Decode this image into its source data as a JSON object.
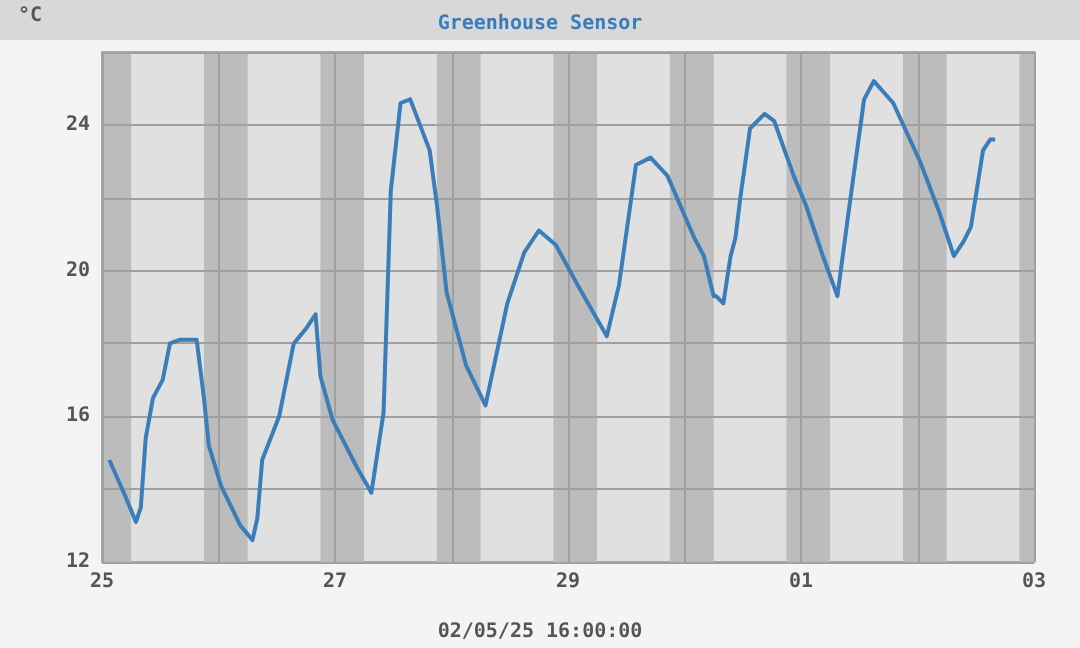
{
  "chart_data": {
    "type": "line",
    "title": "Greenhouse Sensor",
    "ylabel": "°C",
    "annotations": [
      "02/05/25 16:00:00"
    ],
    "xlim": [
      "--04-25T00:00",
      "--05-03T00:00"
    ],
    "xticks": [
      {
        "value": "--04-25T00:00",
        "label": "25"
      },
      {
        "value": "--04-26T00:00",
        "label": null
      },
      {
        "value": "--04-27T00:00",
        "label": "27"
      },
      {
        "value": "--04-28T00:00",
        "label": null
      },
      {
        "value": "--04-29T00:00",
        "label": "29"
      },
      {
        "value": "--04-30T00:00",
        "label": null
      },
      {
        "value": "--05-01T00:00",
        "label": "01"
      },
      {
        "value": "--05-02T00:00",
        "label": null
      },
      {
        "value": "--05-03T00:00",
        "label": "03"
      }
    ],
    "ylim": [
      12,
      26
    ],
    "yticks": [
      12,
      {
        "value": 14,
        "label": null
      },
      16,
      {
        "value": 18,
        "label": null
      },
      20,
      {
        "value": 22,
        "label": null
      },
      24,
      {
        "value": 26,
        "label": null
      }
    ],
    "grid": true,
    "marker": "none",
    "bands": [
      {
        "axis": "x",
        "from": "--04-25T00:00",
        "to": "--04-25T06:00",
        "color": "#bcbcbc"
      },
      {
        "axis": "x",
        "from": "--04-25T21:00",
        "to": "--04-26T06:00",
        "color": "#bcbcbc"
      },
      {
        "axis": "x",
        "from": "--04-26T21:00",
        "to": "--04-27T06:00",
        "color": "#bcbcbc"
      },
      {
        "axis": "x",
        "from": "--04-27T21:00",
        "to": "--04-28T06:00",
        "color": "#bcbcbc"
      },
      {
        "axis": "x",
        "from": "--04-28T21:00",
        "to": "--04-29T06:00",
        "color": "#bcbcbc"
      },
      {
        "axis": "x",
        "from": "--04-29T21:00",
        "to": "--04-30T06:00",
        "color": "#bcbcbc"
      },
      {
        "axis": "x",
        "from": "--04-30T21:00",
        "to": "--05-01T06:00",
        "color": "#bcbcbc"
      },
      {
        "axis": "x",
        "from": "--05-01T21:00",
        "to": "--05-02T06:00",
        "color": "#bcbcbc"
      },
      {
        "axis": "x",
        "from": "--05-02T21:00",
        "to": "--05-03T00:00",
        "color": "#bcbcbc"
      }
    ],
    "series": [
      {
        "color": "#3b7db8",
        "x": [
          "--04-25T01:30",
          "--04-25T04:30",
          "--04-25T07:00",
          "--04-25T08:00",
          "--04-25T09:00",
          "--04-25T10:30",
          "--04-25T12:30",
          "--04-25T14:00",
          "--04-25T16:00",
          "--04-25T19:30",
          "--04-25T21:00",
          "--04-25T22:00",
          "--04-26T00:30",
          "--04-26T04:30",
          "--04-26T07:00",
          "--04-26T08:00",
          "--04-26T09:00",
          "--04-26T12:30",
          "--04-26T15:30",
          "--04-26T18:00",
          "--04-26T20:00",
          "--04-26T21:00",
          "--04-26T23:30",
          "--04-27T04:30",
          "--04-27T07:30",
          "--04-27T10:00",
          "--04-27T11:30",
          "--04-27T13:30",
          "--04-27T15:30",
          "--04-27T19:30",
          "--04-27T21:00",
          "--04-27T23:00",
          "--04-28T03:00",
          "--04-28T07:00",
          "--04-28T11:30",
          "--04-28T15:00",
          "--04-28T18:00",
          "--04-28T21:30",
          "--04-29T02:00",
          "--04-29T08:00",
          "--04-29T10:30",
          "--04-29T14:00",
          "--04-29T17:00",
          "--04-29T20:30",
          "--04-30T02:00",
          "--04-30T04:00",
          "--04-30T06:00",
          "--04-30T06:30",
          "--04-30T08:00",
          "--04-30T09:30",
          "--04-30T10:30",
          "--04-30T11:30",
          "--04-30T13:30",
          "--04-30T16:30",
          "--04-30T18:30",
          "--04-30T22:30",
          "--05-01T01:00",
          "--05-01T04:30",
          "--05-01T07:30",
          "--05-01T10:00",
          "--05-01T13:00",
          "--05-01T15:00",
          "--05-01T19:00",
          "--05-02T00:30",
          "--05-02T04:30",
          "--05-02T07:30",
          "--05-02T09:30",
          "--05-02T11:00",
          "--05-02T13:30",
          "--05-02T15:00",
          "--05-02T16:00"
        ],
        "values": [
          14.8,
          13.9,
          13.1,
          13.5,
          15.4,
          16.5,
          17.0,
          18.0,
          18.1,
          18.1,
          16.5,
          15.2,
          14.1,
          13.0,
          12.6,
          13.2,
          14.8,
          16.0,
          18.0,
          18.4,
          18.8,
          17.1,
          15.9,
          14.6,
          13.9,
          16.1,
          22.2,
          24.6,
          24.7,
          23.3,
          21.8,
          19.4,
          17.4,
          16.3,
          19.1,
          20.5,
          21.1,
          20.7,
          19.6,
          18.2,
          19.6,
          22.9,
          23.1,
          22.6,
          20.9,
          20.4,
          19.3,
          19.3,
          19.1,
          20.4,
          20.9,
          22.0,
          23.9,
          24.3,
          24.1,
          22.6,
          21.8,
          20.4,
          19.3,
          21.8,
          24.7,
          25.2,
          24.6,
          23.0,
          21.6,
          20.4,
          20.8,
          21.2,
          23.3,
          23.6,
          23.6
        ]
      }
    ]
  }
}
